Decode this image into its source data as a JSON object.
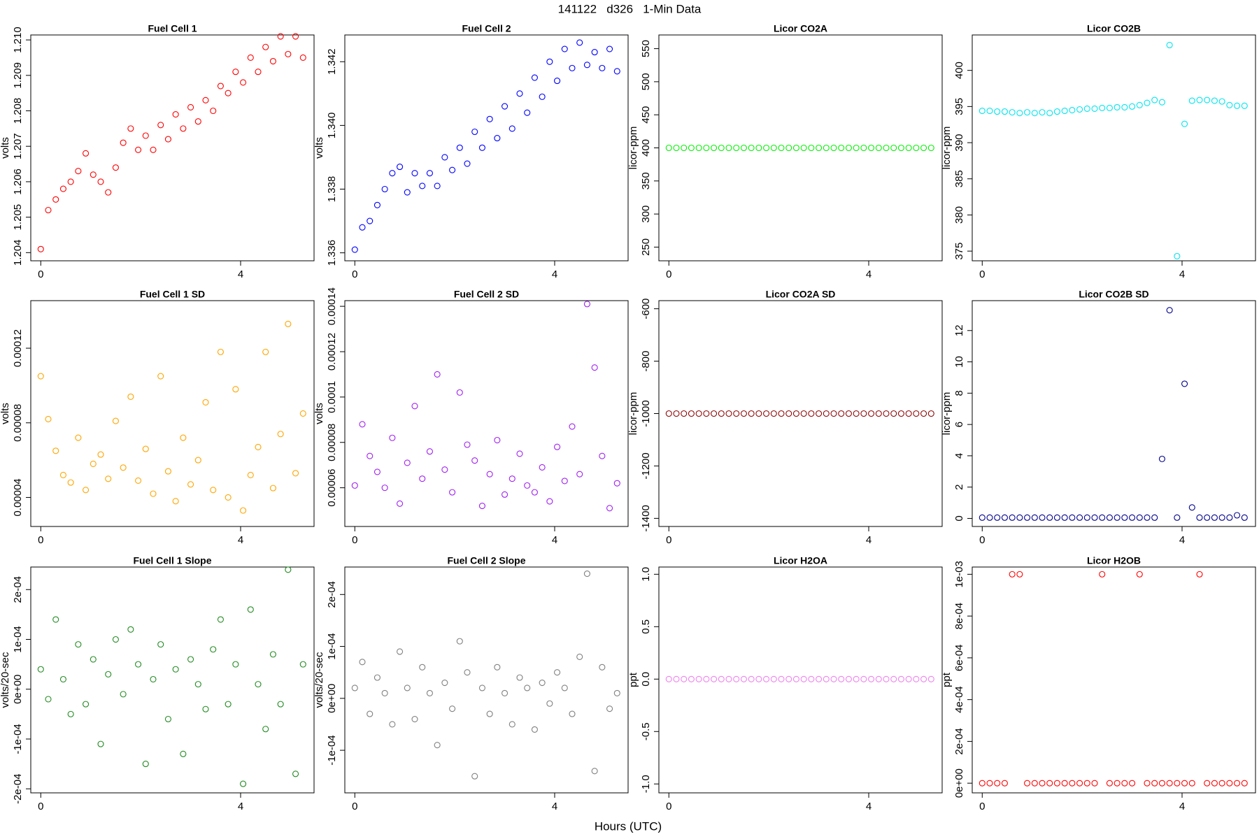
{
  "title": "141122   d326   1-Min Data",
  "x_label": "Hours (UTC)",
  "chart_data": [
    {
      "type": "scatter",
      "title": "Fuel Cell 1",
      "y_label": "volts",
      "color": "#ff0000",
      "x": [
        0,
        0.15,
        0.3,
        0.45,
        0.6,
        0.75,
        0.9,
        1.05,
        1.2,
        1.35,
        1.5,
        1.65,
        1.8,
        1.95,
        2.1,
        2.25,
        2.4,
        2.55,
        2.7,
        2.85,
        3,
        3.15,
        3.3,
        3.45,
        3.6,
        3.75,
        3.9,
        4.05,
        4.2,
        4.35,
        4.5,
        4.65,
        4.8,
        4.95,
        5.1,
        5.25
      ],
      "values": [
        1.2041,
        1.2052,
        1.2055,
        1.2058,
        1.206,
        1.2063,
        1.2068,
        1.2062,
        1.206,
        1.2057,
        1.2064,
        1.2071,
        1.2075,
        1.2069,
        1.2073,
        1.2069,
        1.2076,
        1.2072,
        1.2079,
        1.2075,
        1.2081,
        1.2077,
        1.2083,
        1.208,
        1.2087,
        1.2085,
        1.2091,
        1.2088,
        1.2095,
        1.2091,
        1.2098,
        1.2094,
        1.2101,
        1.2096,
        1.2101,
        1.2095
      ],
      "xlim": [
        -0.2,
        5.47
      ],
      "xticks": [
        0,
        4
      ],
      "ylim": [
        1.20377,
        1.21014
      ],
      "yticks": [
        1.204,
        1.205,
        1.206,
        1.207,
        1.208,
        1.209,
        {
          "value": 1.21,
          "label": "1.210"
        }
      ]
    },
    {
      "type": "scatter",
      "title": "Fuel Cell 2",
      "y_label": "volts",
      "color": "#0000ff",
      "x": [
        0,
        0.15,
        0.3,
        0.45,
        0.6,
        0.75,
        0.9,
        1.05,
        1.2,
        1.35,
        1.5,
        1.65,
        1.8,
        1.95,
        2.1,
        2.25,
        2.4,
        2.55,
        2.7,
        2.85,
        3,
        3.15,
        3.3,
        3.45,
        3.6,
        3.75,
        3.9,
        4.05,
        4.2,
        4.35,
        4.5,
        4.65,
        4.8,
        4.95,
        5.1,
        5.25
      ],
      "values": [
        1.3361,
        1.3368,
        1.337,
        1.3375,
        1.338,
        1.3385,
        1.3387,
        1.3379,
        1.3385,
        1.3381,
        1.3385,
        1.3381,
        1.339,
        1.3386,
        1.3393,
        1.3388,
        1.3398,
        1.3393,
        1.3402,
        1.3396,
        1.3406,
        1.3399,
        1.341,
        1.3404,
        1.3415,
        1.3409,
        1.342,
        1.3414,
        1.3424,
        1.3418,
        1.3426,
        1.3419,
        1.3423,
        1.3418,
        1.3424,
        1.3417
      ],
      "xlim": [
        -0.2,
        5.47
      ],
      "xticks": [
        0,
        4
      ],
      "ylim": [
        1.33575,
        1.34284
      ],
      "yticks": [
        1.336,
        1.338,
        {
          "value": 1.34,
          "label": "1.340"
        },
        1.342
      ]
    },
    {
      "type": "scatter",
      "title": "Licor CO2A",
      "y_label": "licor-ppm",
      "color": "#00ee00",
      "x": [
        0,
        0.15,
        0.3,
        0.45,
        0.6,
        0.75,
        0.9,
        1.05,
        1.2,
        1.35,
        1.5,
        1.65,
        1.8,
        1.95,
        2.1,
        2.25,
        2.4,
        2.55,
        2.7,
        2.85,
        3,
        3.15,
        3.3,
        3.45,
        3.6,
        3.75,
        3.9,
        4.05,
        4.2,
        4.35,
        4.5,
        4.65,
        4.8,
        4.95,
        5.1,
        5.25
      ],
      "values": [
        400,
        400,
        400,
        400,
        400,
        400,
        400,
        400,
        400,
        400,
        400,
        400,
        400,
        400,
        400,
        400,
        400,
        400,
        400,
        400,
        400,
        400,
        400,
        400,
        400,
        400,
        400,
        400,
        400,
        400,
        400,
        400,
        400,
        400,
        400,
        400
      ],
      "xlim": [
        -0.2,
        5.47
      ],
      "xticks": [
        0,
        4
      ],
      "ylim": [
        229.3,
        570.7
      ],
      "yticks": [
        250,
        300,
        350,
        400,
        450,
        500,
        550
      ]
    },
    {
      "type": "scatter",
      "title": "Licor CO2B",
      "y_label": "licor-ppm",
      "color": "#00e5ee",
      "x": [
        0,
        0.15,
        0.3,
        0.45,
        0.6,
        0.75,
        0.9,
        1.05,
        1.2,
        1.35,
        1.5,
        1.65,
        1.8,
        1.95,
        2.1,
        2.25,
        2.4,
        2.55,
        2.7,
        2.85,
        3,
        3.15,
        3.3,
        3.45,
        3.6,
        3.75,
        3.9,
        4.05,
        4.2,
        4.35,
        4.5,
        4.65,
        4.8,
        4.95,
        5.1,
        5.25
      ],
      "values": [
        394.4,
        394.4,
        394.3,
        394.3,
        394.2,
        394.1,
        394.2,
        394.1,
        394.2,
        394.1,
        394.3,
        394.4,
        394.5,
        394.6,
        394.7,
        394.7,
        394.8,
        394.8,
        394.9,
        394.9,
        395,
        395.2,
        395.5,
        395.9,
        395.6,
        403.5,
        374.3,
        392.6,
        395.8,
        395.9,
        395.9,
        395.8,
        395.7,
        395.2,
        395.1,
        395.1
      ],
      "xlim": [
        -0.2,
        5.47
      ],
      "xticks": [
        0,
        4
      ],
      "ylim": [
        373.66,
        404.9
      ],
      "yticks": [
        375,
        380,
        385,
        390,
        395,
        400
      ]
    },
    {
      "type": "scatter",
      "title": "Fuel Cell 1 SD",
      "y_label": "volts",
      "color": "#ffa500",
      "x": [
        0,
        0.15,
        0.3,
        0.45,
        0.6,
        0.75,
        0.9,
        1.05,
        1.2,
        1.35,
        1.5,
        1.65,
        1.8,
        1.95,
        2.1,
        2.25,
        2.4,
        2.55,
        2.7,
        2.85,
        3,
        3.15,
        3.3,
        3.45,
        3.6,
        3.75,
        3.9,
        4.05,
        4.2,
        4.35,
        4.5,
        4.65,
        4.8,
        4.95,
        5.1,
        5.25
      ],
      "values": [
        0.000105,
        8.2e-05,
        6.5e-05,
        5.2e-05,
        4.8e-05,
        7.2e-05,
        4.4e-05,
        5.8e-05,
        6.3e-05,
        5e-05,
        8.1e-05,
        5.6e-05,
        9.4e-05,
        4.9e-05,
        6.6e-05,
        4.2e-05,
        0.000105,
        5.4e-05,
        3.8e-05,
        7.2e-05,
        4.7e-05,
        6e-05,
        9.1e-05,
        4.4e-05,
        0.000118,
        4e-05,
        9.8e-05,
        3.3e-05,
        5.2e-05,
        6.7e-05,
        0.000118,
        4.5e-05,
        7.4e-05,
        0.000133,
        5.3e-05,
        8.5e-05
      ],
      "xlim": [
        -0.2,
        5.47
      ],
      "xticks": [
        0,
        4
      ],
      "ylim": [
        2.443e-05,
        0.0001455
      ],
      "yticks": [
        4e-05,
        8e-05,
        0.00012
      ]
    },
    {
      "type": "scatter",
      "title": "Fuel Cell 2 SD",
      "y_label": "volts",
      "color": "#a020f0",
      "x": [
        0,
        0.15,
        0.3,
        0.45,
        0.6,
        0.75,
        0.9,
        1.05,
        1.2,
        1.35,
        1.5,
        1.65,
        1.8,
        1.95,
        2.1,
        2.25,
        2.4,
        2.55,
        2.7,
        2.85,
        3,
        3.15,
        3.3,
        3.45,
        3.6,
        3.75,
        3.9,
        4.05,
        4.2,
        4.35,
        4.5,
        4.65,
        4.8,
        4.95,
        5.1,
        5.25
      ],
      "values": [
        6.1e-05,
        8.8e-05,
        7.4e-05,
        6.7e-05,
        6e-05,
        8.2e-05,
        5.3e-05,
        7.1e-05,
        9.6e-05,
        6.4e-05,
        7.6e-05,
        0.00011,
        6.8e-05,
        5.8e-05,
        0.000102,
        7.9e-05,
        7.2e-05,
        5.2e-05,
        6.6e-05,
        8.1e-05,
        5.7e-05,
        6.4e-05,
        7.5e-05,
        6.1e-05,
        5.8e-05,
        6.9e-05,
        5.4e-05,
        7.8e-05,
        6.3e-05,
        8.7e-05,
        6.6e-05,
        0.000141,
        0.000113,
        7.4e-05,
        5.1e-05,
        6.2e-05
      ],
      "xlim": [
        -0.2,
        5.47
      ],
      "xticks": [
        0,
        4
      ],
      "ylim": [
        4.293e-05,
        0.0001425
      ],
      "yticks": [
        6e-05,
        8e-05,
        0.0001,
        0.00012,
        0.00014
      ]
    },
    {
      "type": "scatter",
      "title": "Licor CO2A SD",
      "y_label": "licor-ppm",
      "color": "#8b0000",
      "x": [
        0,
        0.15,
        0.3,
        0.45,
        0.6,
        0.75,
        0.9,
        1.05,
        1.2,
        1.35,
        1.5,
        1.65,
        1.8,
        1.95,
        2.1,
        2.25,
        2.4,
        2.55,
        2.7,
        2.85,
        3,
        3.15,
        3.3,
        3.45,
        3.6,
        3.75,
        3.9,
        4.05,
        4.2,
        4.35,
        4.5,
        4.65,
        4.8,
        4.95,
        5.1,
        5.25
      ],
      "values": [
        -1000,
        -1000,
        -1000,
        -1000,
        -1000,
        -1000,
        -1000,
        -1000,
        -1000,
        -1000,
        -1000,
        -1000,
        -1000,
        -1000,
        -1000,
        -1000,
        -1000,
        -1000,
        -1000,
        -1000,
        -1000,
        -1000,
        -1000,
        -1000,
        -1000,
        -1000,
        -1000,
        -1000,
        -1000,
        -1000,
        -1000,
        -1000,
        -1000,
        -1000,
        -1000,
        -1000
      ],
      "xlim": [
        -0.2,
        5.47
      ],
      "xticks": [
        0,
        4
      ],
      "ylim": [
        -1431,
        -569
      ],
      "yticks": [
        -1400,
        -1200,
        -1000,
        -800,
        -600
      ]
    },
    {
      "type": "scatter",
      "title": "Licor CO2B SD",
      "y_label": "licor-ppm",
      "color": "#00008b",
      "x": [
        0,
        0.15,
        0.3,
        0.45,
        0.6,
        0.75,
        0.9,
        1.05,
        1.2,
        1.35,
        1.5,
        1.65,
        1.8,
        1.95,
        2.1,
        2.25,
        2.4,
        2.55,
        2.7,
        2.85,
        3,
        3.15,
        3.3,
        3.45,
        3.6,
        3.75,
        3.9,
        4.05,
        4.2,
        4.35,
        4.5,
        4.65,
        4.8,
        4.95,
        5.1,
        5.25
      ],
      "values": [
        0.05,
        0.05,
        0.05,
        0.05,
        0.05,
        0.05,
        0.05,
        0.05,
        0.05,
        0.05,
        0.05,
        0.05,
        0.05,
        0.05,
        0.05,
        0.05,
        0.05,
        0.05,
        0.05,
        0.05,
        0.05,
        0.05,
        0.05,
        0.05,
        3.8,
        13.3,
        0.05,
        8.6,
        0.7,
        0.05,
        0.05,
        0.05,
        0.05,
        0.05,
        0.2,
        0.05
      ],
      "xlim": [
        -0.2,
        5.47
      ],
      "xticks": [
        0,
        4
      ],
      "ylim": [
        -0.515,
        13.91
      ],
      "yticks": [
        0,
        2,
        4,
        6,
        8,
        10,
        12
      ]
    },
    {
      "type": "scatter",
      "title": "Fuel Cell 1 Slope",
      "y_label": "volts/20-sec",
      "color": "#228b22",
      "x": [
        0,
        0.15,
        0.3,
        0.45,
        0.6,
        0.75,
        0.9,
        1.05,
        1.2,
        1.35,
        1.5,
        1.65,
        1.8,
        1.95,
        2.1,
        2.25,
        2.4,
        2.55,
        2.7,
        2.85,
        3,
        3.15,
        3.3,
        3.45,
        3.6,
        3.75,
        3.9,
        4.05,
        4.2,
        4.35,
        4.5,
        4.65,
        4.8,
        4.95,
        5.1,
        5.25
      ],
      "values": [
        4e-05,
        -2e-05,
        0.00014,
        2e-05,
        -5e-05,
        9e-05,
        -3e-05,
        6e-05,
        -0.00011,
        3e-05,
        0.0001,
        -1e-05,
        0.00012,
        5e-05,
        -0.00015,
        2e-05,
        9e-05,
        -6e-05,
        4e-05,
        -0.00013,
        6e-05,
        1e-05,
        -4e-05,
        8e-05,
        0.00014,
        -3e-05,
        5e-05,
        -0.00019,
        0.00016,
        1e-05,
        -8e-05,
        7e-05,
        -3e-05,
        0.00024,
        -0.00017,
        5e-05
      ],
      "xlim": [
        -0.2,
        5.47
      ],
      "xticks": [
        0,
        4
      ],
      "ylim": [
        -0.0002081,
        0.0002453
      ],
      "yticks": [
        {
          "value": -0.0002,
          "label": "-2e-04"
        },
        {
          "value": -0.0001,
          "label": "-1e-04"
        },
        {
          "value": 0,
          "label": "0e+00"
        },
        {
          "value": 0.0001,
          "label": "1e-04"
        },
        {
          "value": 0.0002,
          "label": "2e-04"
        }
      ]
    },
    {
      "type": "scatter",
      "title": "Fuel Cell 2 Slope",
      "y_label": "volts/20-sec",
      "color": "#808080",
      "x": [
        0,
        0.15,
        0.3,
        0.45,
        0.6,
        0.75,
        0.9,
        1.05,
        1.2,
        1.35,
        1.5,
        1.65,
        1.8,
        1.95,
        2.1,
        2.25,
        2.4,
        2.55,
        2.7,
        2.85,
        3,
        3.15,
        3.3,
        3.45,
        3.6,
        3.75,
        3.9,
        4.05,
        4.2,
        4.35,
        4.5,
        4.65,
        4.8,
        4.95,
        5.1,
        5.25
      ],
      "values": [
        2e-05,
        7e-05,
        -3e-05,
        4e-05,
        1e-05,
        -5e-05,
        9e-05,
        2e-05,
        -4e-05,
        6e-05,
        1e-05,
        -9e-05,
        3e-05,
        -2e-05,
        0.00011,
        5e-05,
        -0.00015,
        2e-05,
        -3e-05,
        6e-05,
        1e-05,
        -5e-05,
        4e-05,
        2e-05,
        -6e-05,
        3e-05,
        -1e-05,
        5e-05,
        2e-05,
        -3e-05,
        8e-05,
        0.00024,
        -0.00014,
        6e-05,
        -2e-05,
        1e-05
      ],
      "xlim": [
        -0.2,
        5.47
      ],
      "xticks": [
        0,
        4
      ],
      "ylim": [
        -0.000182,
        0.0002529
      ],
      "yticks": [
        {
          "value": -0.0001,
          "label": "-1e-04"
        },
        {
          "value": 0,
          "label": "0e+00"
        },
        {
          "value": 0.0001,
          "label": "1e-04"
        },
        {
          "value": 0.0002,
          "label": "2e-04"
        }
      ]
    },
    {
      "type": "scatter",
      "title": "Licor H2OA",
      "y_label": "ppt",
      "color": "#ee82ee",
      "x": [
        0,
        0.15,
        0.3,
        0.45,
        0.6,
        0.75,
        0.9,
        1.05,
        1.2,
        1.35,
        1.5,
        1.65,
        1.8,
        1.95,
        2.1,
        2.25,
        2.4,
        2.55,
        2.7,
        2.85,
        3,
        3.15,
        3.3,
        3.45,
        3.6,
        3.75,
        3.9,
        4.05,
        4.2,
        4.35,
        4.5,
        4.65,
        4.8,
        4.95,
        5.1,
        5.25
      ],
      "values": [
        0,
        0,
        0,
        0,
        0,
        0,
        0,
        0,
        0,
        0,
        0,
        0,
        0,
        0,
        0,
        0,
        0,
        0,
        0,
        0,
        0,
        0,
        0,
        0,
        0,
        0,
        0,
        0,
        0,
        0,
        0,
        0,
        0,
        0,
        0,
        0
      ],
      "xlim": [
        -0.2,
        5.47
      ],
      "xticks": [
        0,
        4
      ],
      "ylim": [
        -1.085,
        1.069
      ],
      "yticks": [
        {
          "value": -1,
          "label": "-1.0"
        },
        -0.5,
        {
          "value": 0,
          "label": "0.0"
        },
        0.5,
        {
          "value": 1,
          "label": "1.0"
        }
      ]
    },
    {
      "type": "scatter",
      "title": "Licor H2OB",
      "y_label": "ppt",
      "color": "#ff0000",
      "x": [
        0,
        0.15,
        0.3,
        0.45,
        0.6,
        0.75,
        0.9,
        1.05,
        1.2,
        1.35,
        1.5,
        1.65,
        1.8,
        1.95,
        2.1,
        2.25,
        2.4,
        2.55,
        2.7,
        2.85,
        3,
        3.15,
        3.3,
        3.45,
        3.6,
        3.75,
        3.9,
        4.05,
        4.2,
        4.35,
        4.5,
        4.65,
        4.8,
        4.95,
        5.1,
        5.25
      ],
      "values": [
        0,
        0,
        0,
        0,
        0.001,
        0.001,
        0,
        0,
        0,
        0,
        0,
        0,
        0,
        0,
        0,
        0,
        0.001,
        0,
        0,
        0,
        0,
        0.001,
        0,
        0,
        0,
        0,
        0,
        0,
        0,
        0.001,
        0,
        0,
        0,
        0,
        0,
        0
      ],
      "xlim": [
        -0.2,
        5.47
      ],
      "xticks": [
        0,
        4
      ],
      "ylim": [
        -4.63e-05,
        0.0010347
      ],
      "yticks": [
        {
          "value": 0,
          "label": "0e+00"
        },
        {
          "value": 0.0002,
          "label": "2e-04"
        },
        {
          "value": 0.0004,
          "label": "4e-04"
        },
        {
          "value": 0.0006,
          "label": "6e-04"
        },
        {
          "value": 0.0008,
          "label": "8e-04"
        },
        {
          "value": 0.001,
          "label": "1e-03"
        }
      ]
    }
  ]
}
